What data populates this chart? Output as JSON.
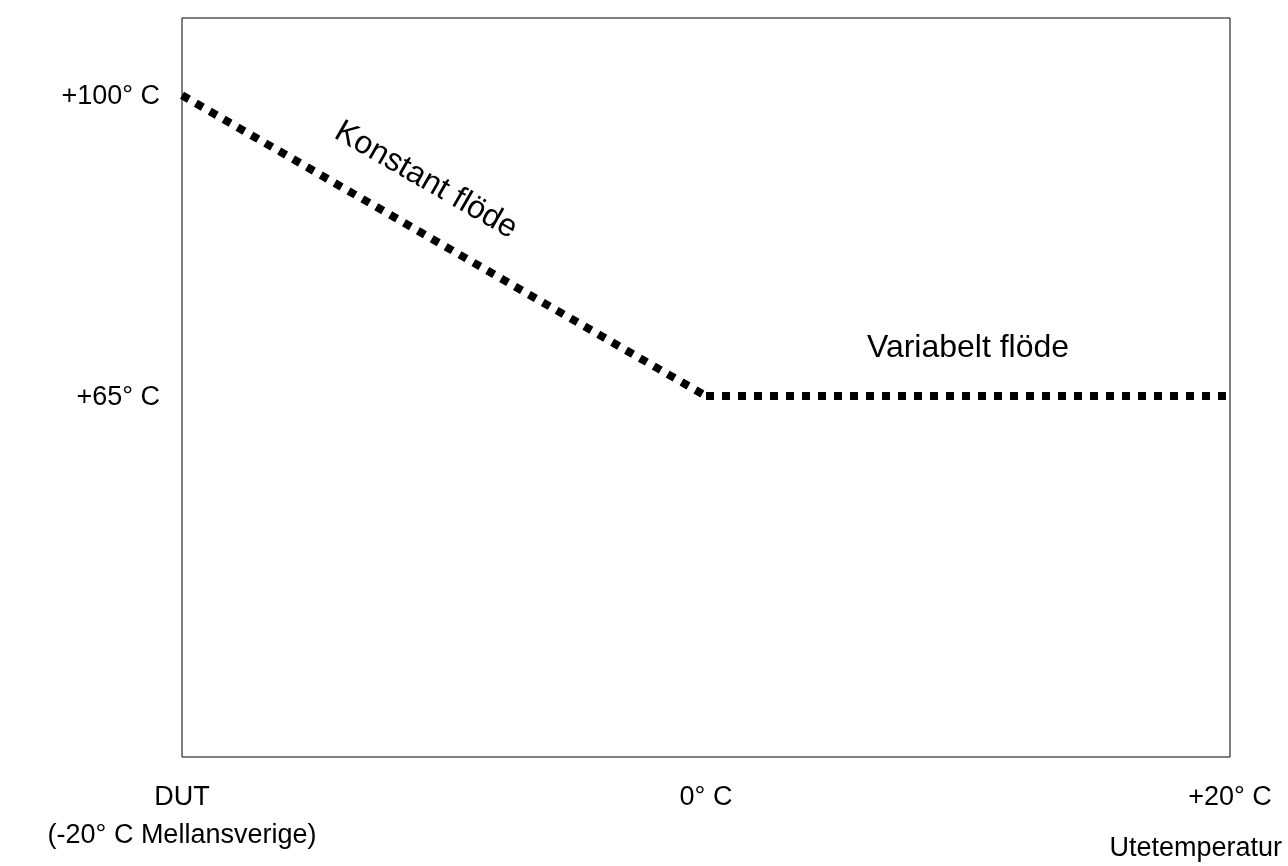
{
  "chart_data": {
    "type": "line",
    "xlabel": "Utetemperatur",
    "series": [
      {
        "name": "Konstant flöde",
        "color": "#000000",
        "x": [
          -20,
          0
        ],
        "values": [
          100,
          65
        ]
      },
      {
        "name": "Variabelt flöde",
        "color": "#000000",
        "x": [
          0,
          20
        ],
        "values": [
          65,
          65
        ]
      }
    ],
    "xlim": [
      -20,
      20
    ],
    "xticks": [
      {
        "value": -20,
        "label": "DUT\n(-20° C Mellansverige)"
      },
      {
        "value": 0,
        "label": "0° C"
      },
      {
        "value": 20,
        "label": "+20° C"
      }
    ],
    "ylim": [
      23,
      109
    ],
    "yticks": [
      {
        "value": 65,
        "label": "+65° C"
      },
      {
        "value": 100,
        "label": "+100° C"
      }
    ],
    "grid": false,
    "legend": false,
    "marker": "none",
    "line_style": "dotted"
  }
}
